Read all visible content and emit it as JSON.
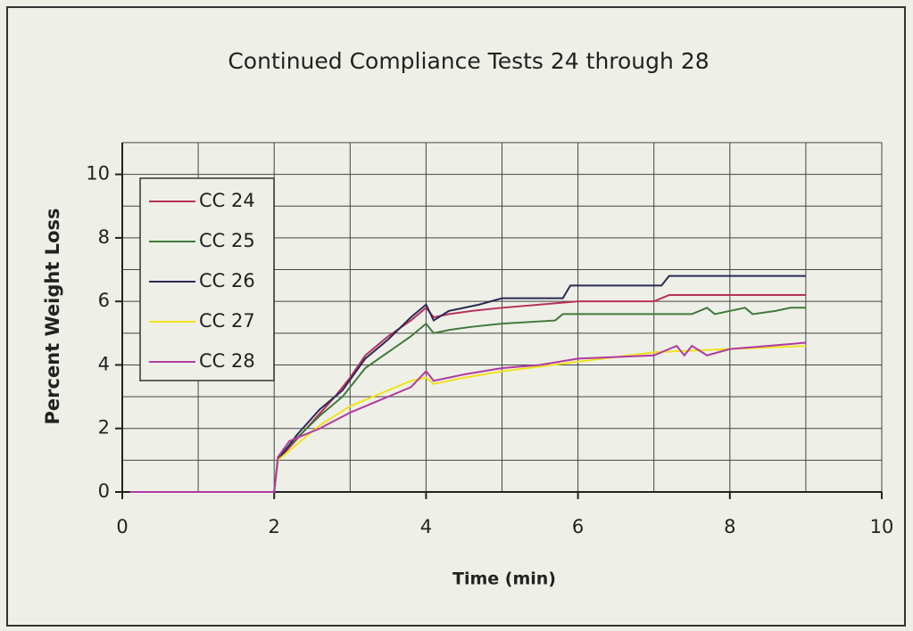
{
  "chart_data": {
    "type": "line",
    "title": "Continued Compliance Tests 24 through 28",
    "x_label": "Time (min)",
    "y_label": "Percent Weight Loss",
    "xlim": [
      0,
      10
    ],
    "ylim": [
      0,
      11
    ],
    "xticks": [
      0,
      2,
      4,
      6,
      8,
      10
    ],
    "yticks": [
      0,
      2,
      4,
      6,
      8,
      10
    ],
    "xgrid": [
      0,
      1,
      2,
      3,
      4,
      5,
      6,
      7,
      8,
      9,
      10
    ],
    "ygrid": [
      0,
      1,
      2,
      3,
      4,
      5,
      6,
      7,
      8,
      9,
      10,
      11
    ],
    "legend": "upper left",
    "series": [
      {
        "name": "CC 24",
        "color": "#b8305a",
        "x": [
          0.1,
          2.0,
          2.05,
          2.2,
          2.5,
          2.8,
          3.0,
          3.2,
          3.5,
          3.8,
          4.0,
          4.1,
          4.3,
          4.6,
          5.0,
          5.5,
          6.0,
          7.0,
          7.2,
          9.0
        ],
        "values": [
          0,
          0,
          1.0,
          1.4,
          2.2,
          3.0,
          3.6,
          4.3,
          4.9,
          5.4,
          5.8,
          5.5,
          5.6,
          5.7,
          5.8,
          5.9,
          6.0,
          6.0,
          6.2,
          6.2
        ]
      },
      {
        "name": "CC 25",
        "color": "#3f7a3a",
        "x": [
          0.1,
          2.0,
          2.05,
          2.3,
          2.6,
          2.9,
          3.2,
          3.5,
          3.8,
          4.0,
          4.1,
          4.3,
          4.6,
          5.0,
          5.7,
          5.8,
          7.5,
          7.7,
          7.8,
          8.2,
          8.3,
          8.6,
          8.8,
          9.0
        ],
        "values": [
          0,
          0,
          1.1,
          1.7,
          2.4,
          3.0,
          3.9,
          4.4,
          4.9,
          5.3,
          5.0,
          5.1,
          5.2,
          5.3,
          5.4,
          5.6,
          5.6,
          5.8,
          5.6,
          5.8,
          5.6,
          5.7,
          5.8,
          5.8
        ]
      },
      {
        "name": "CC 26",
        "color": "#2a2a55",
        "x": [
          0.1,
          2.0,
          2.05,
          2.3,
          2.6,
          2.9,
          3.2,
          3.5,
          3.8,
          4.0,
          4.1,
          4.3,
          4.7,
          5.0,
          5.8,
          5.9,
          7.1,
          7.2,
          9.0
        ],
        "values": [
          0,
          0,
          1.0,
          1.8,
          2.6,
          3.2,
          4.2,
          4.8,
          5.5,
          5.9,
          5.4,
          5.7,
          5.9,
          6.1,
          6.1,
          6.5,
          6.5,
          6.8,
          6.8
        ]
      },
      {
        "name": "CC 27",
        "color": "#f2e21a",
        "x": [
          0.1,
          2.0,
          2.05,
          2.3,
          2.6,
          3.0,
          3.4,
          3.8,
          4.0,
          4.1,
          4.5,
          5.0,
          6.0,
          7.0,
          8.0,
          9.0
        ],
        "values": [
          0,
          0,
          1.0,
          1.5,
          2.1,
          2.7,
          3.1,
          3.5,
          3.6,
          3.4,
          3.6,
          3.8,
          4.1,
          4.4,
          4.5,
          4.6
        ]
      },
      {
        "name": "CC 28",
        "color": "#b03aa0",
        "x": [
          0.1,
          2.0,
          2.05,
          2.2,
          2.6,
          3.0,
          3.4,
          3.8,
          4.0,
          4.1,
          4.5,
          5.0,
          5.5,
          6.0,
          7.0,
          7.3,
          7.4,
          7.5,
          7.7,
          8.0,
          8.5,
          9.0
        ],
        "values": [
          0,
          0,
          1.1,
          1.6,
          2.0,
          2.5,
          2.9,
          3.3,
          3.8,
          3.5,
          3.7,
          3.9,
          4.0,
          4.2,
          4.3,
          4.6,
          4.3,
          4.6,
          4.3,
          4.5,
          4.6,
          4.7
        ]
      }
    ]
  }
}
